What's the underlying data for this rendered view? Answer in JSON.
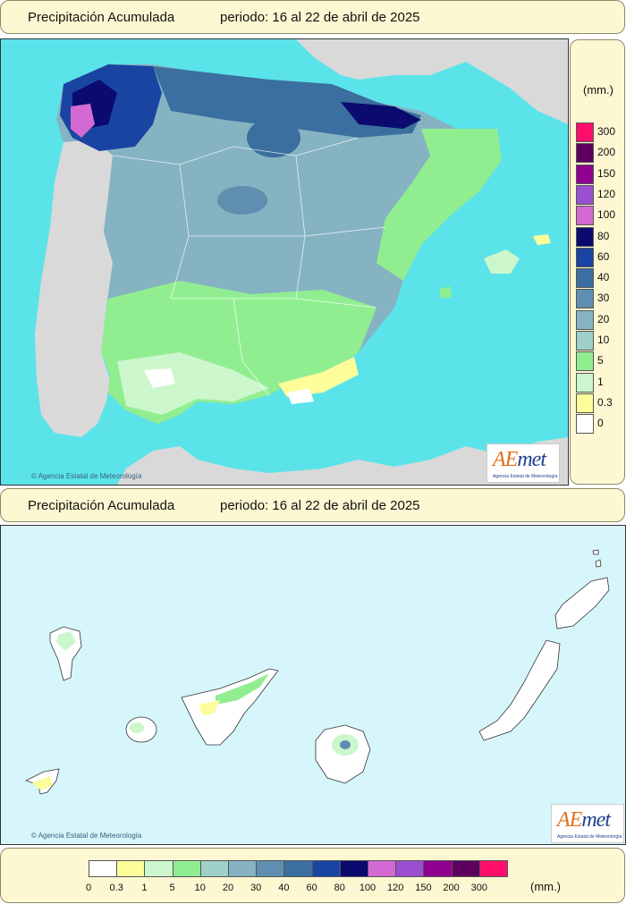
{
  "top_header": {
    "title": "Precipitación Acumulada",
    "period": "periodo: 16 al 22 de abril de 2025"
  },
  "canary_header": {
    "title": "Precipitación Acumulada",
    "period": "periodo: 16 al 22 de abril de 2025"
  },
  "credit_text": "Agencia Estatal de Meteorología",
  "logo": {
    "word_a": "AE",
    "word_b": "met",
    "subtitle": "Agencia Estatal de Meteorología"
  },
  "legend": {
    "unit": "(mm.)",
    "levels": [
      {
        "label": "0",
        "color": "#ffffff"
      },
      {
        "label": "0.3",
        "color": "#fdfd99"
      },
      {
        "label": "1",
        "color": "#ccf7cc"
      },
      {
        "label": "5",
        "color": "#90ee90"
      },
      {
        "label": "10",
        "color": "#9fcfc9"
      },
      {
        "label": "20",
        "color": "#86b3c2"
      },
      {
        "label": "30",
        "color": "#5f8fb0"
      },
      {
        "label": "40",
        "color": "#3b6f9f"
      },
      {
        "label": "60",
        "color": "#1a44a2"
      },
      {
        "label": "80",
        "color": "#0a0a6f"
      },
      {
        "label": "100",
        "color": "#d36ad3"
      },
      {
        "label": "120",
        "color": "#9a4fd0"
      },
      {
        "label": "150",
        "color": "#900090"
      },
      {
        "label": "200",
        "color": "#5e005e"
      },
      {
        "label": "300",
        "color": "#ff0f6b"
      }
    ]
  },
  "colors": {
    "sea": "#5be3ea",
    "land_other": "#d9d9d9",
    "canary_sea": "#d6f6fb",
    "frame": "#fdf8d2"
  }
}
